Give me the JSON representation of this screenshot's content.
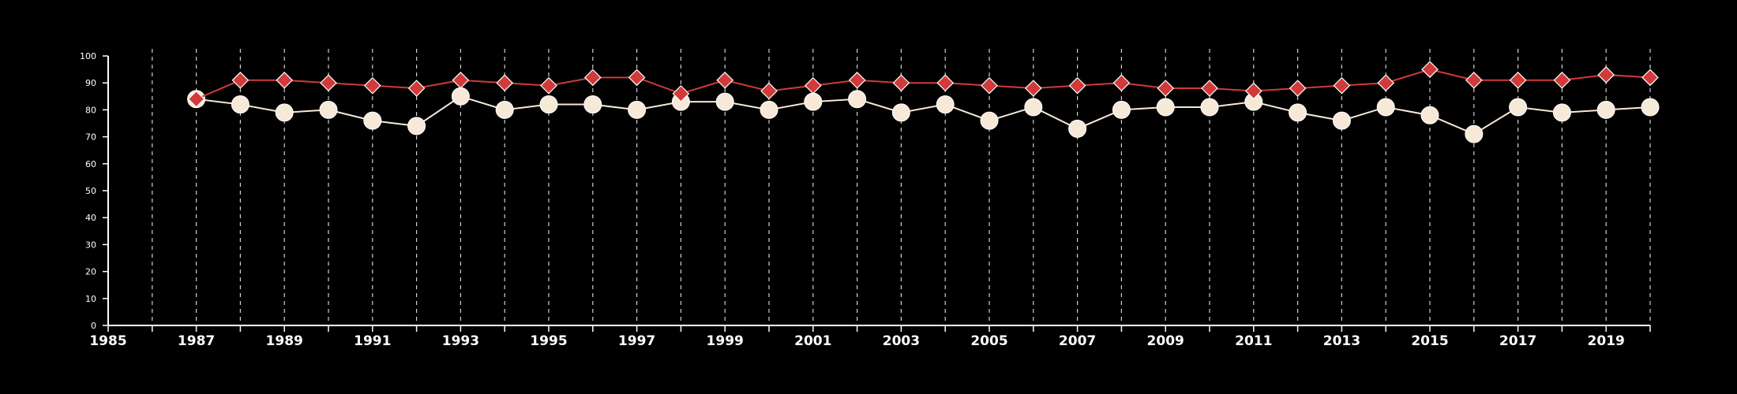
{
  "chart_data": {
    "type": "line",
    "title": "",
    "xlabel": "",
    "ylabel": "",
    "xlim": [
      1985,
      2020
    ],
    "ylim": [
      0,
      100
    ],
    "xticks": [
      1985,
      1987,
      1989,
      1991,
      1993,
      1995,
      1997,
      1999,
      2001,
      2003,
      2005,
      2007,
      2009,
      2011,
      2013,
      2015,
      2017,
      2019
    ],
    "yticks": [
      0,
      10,
      20,
      30,
      40,
      50,
      60,
      70,
      80,
      90,
      100
    ],
    "grid": "vertical dashed, every year",
    "legend": "none",
    "x": [
      1987,
      1988,
      1989,
      1990,
      1991,
      1992,
      1993,
      1994,
      1995,
      1996,
      1997,
      1998,
      1999,
      2000,
      2001,
      2002,
      2003,
      2004,
      2005,
      2006,
      2007,
      2008,
      2009,
      2010,
      2011,
      2012,
      2013,
      2014,
      2015,
      2016,
      2017,
      2018,
      2019,
      2020
    ],
    "series": [
      {
        "marker": "diamond",
        "color": "#d13a3a",
        "values": [
          84,
          91,
          91,
          90,
          89,
          88,
          91,
          90,
          89,
          92,
          92,
          86,
          91,
          87,
          89,
          91,
          90,
          90,
          89,
          88,
          89,
          90,
          88,
          88,
          87,
          88,
          89,
          90,
          95,
          91,
          91,
          91,
          93,
          92
        ]
      },
      {
        "marker": "circle",
        "color": "#f7e9d7",
        "values": [
          84,
          82,
          79,
          80,
          76,
          74,
          85,
          80,
          82,
          82,
          80,
          83,
          83,
          80,
          83,
          84,
          79,
          82,
          76,
          81,
          73,
          80,
          81,
          81,
          83,
          79,
          76,
          81,
          78,
          71,
          81,
          79,
          80,
          81
        ]
      }
    ]
  }
}
